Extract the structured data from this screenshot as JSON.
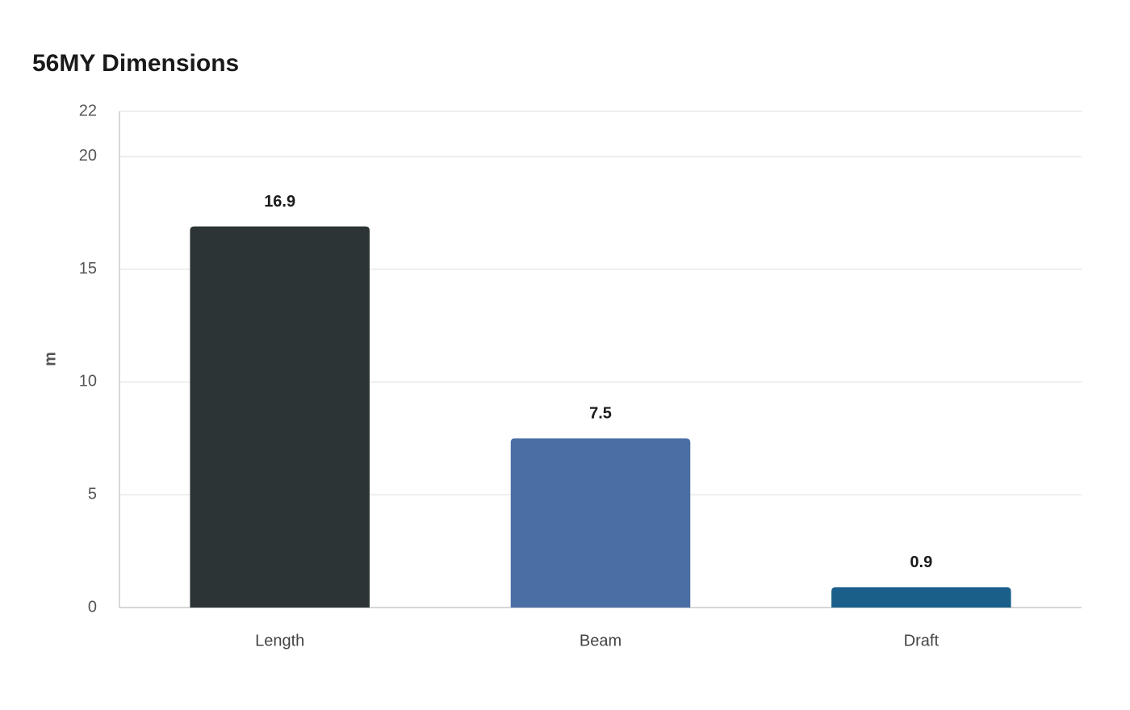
{
  "chart_data": {
    "type": "bar",
    "title": "56MY Dimensions",
    "y_label": "m",
    "categories": [
      "Length",
      "Beam",
      "Draft"
    ],
    "values": [
      16.9,
      7.5,
      0.9
    ],
    "colors": [
      "#2d3436",
      "#4a6fa5",
      "#1a5f8a"
    ],
    "ylim": [
      0,
      22
    ],
    "yticks": [
      0,
      5,
      10,
      15,
      20,
      22
    ],
    "grid": true
  }
}
